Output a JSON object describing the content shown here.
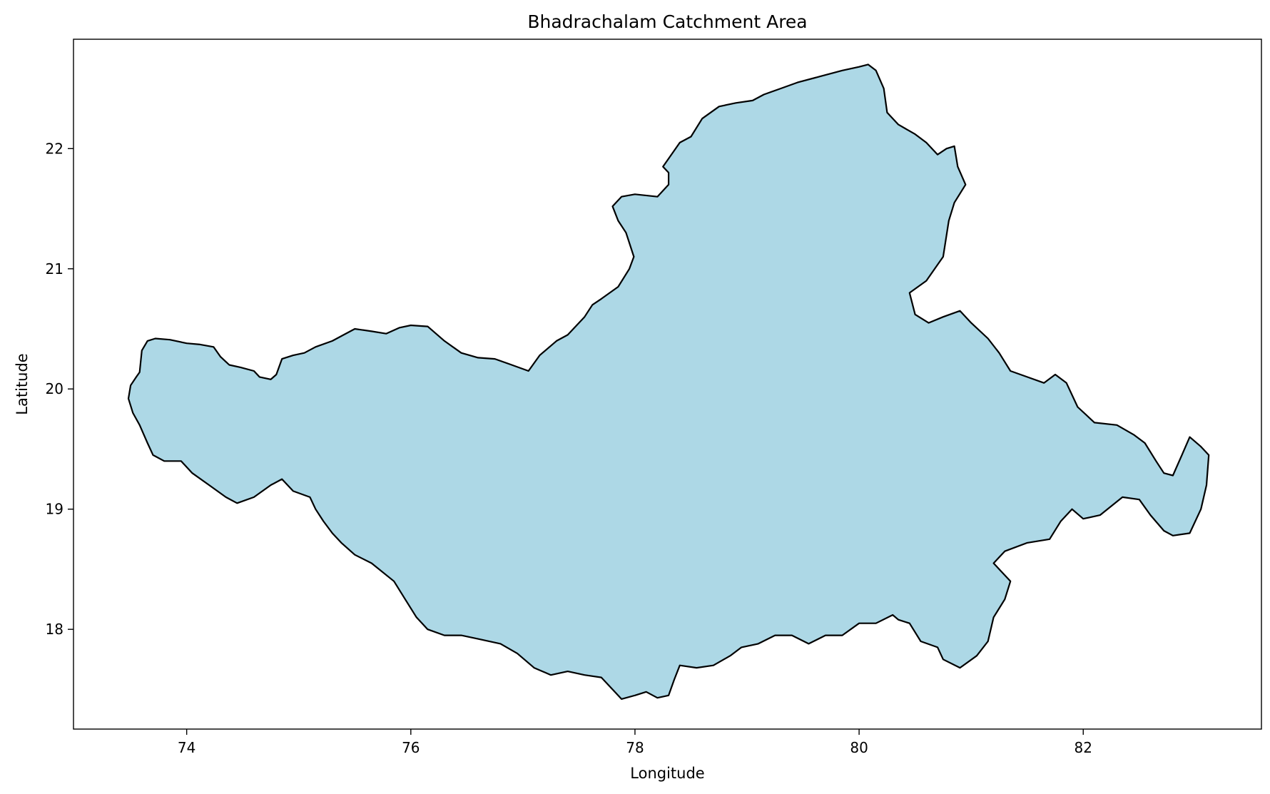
{
  "title": "Bhadrachalam Catchment Area",
  "x_axis": {
    "label": "Longitude",
    "range": [
      72.99,
      83.59
    ],
    "ticks": [
      74,
      76,
      78,
      80,
      82
    ]
  },
  "y_axis": {
    "label": "Latitude",
    "range": [
      17.17,
      22.91
    ],
    "ticks": [
      18,
      19,
      20,
      21,
      22
    ]
  },
  "style": {
    "fill_color": "#add8e6",
    "outline_color": "#000000",
    "frame_color": "#000000",
    "background": "#ffffff"
  },
  "region": {
    "name": "Bhadrachalam Catchment Area",
    "boundary": [
      [
        73.48,
        19.92
      ],
      [
        73.5,
        20.03
      ],
      [
        73.55,
        20.1
      ],
      [
        73.58,
        20.14
      ],
      [
        73.6,
        20.32
      ],
      [
        73.65,
        20.4
      ],
      [
        73.72,
        20.42
      ],
      [
        73.85,
        20.41
      ],
      [
        74.0,
        20.38
      ],
      [
        74.12,
        20.37
      ],
      [
        74.24,
        20.35
      ],
      [
        74.3,
        20.27
      ],
      [
        74.38,
        20.2
      ],
      [
        74.48,
        20.18
      ],
      [
        74.6,
        20.15
      ],
      [
        74.65,
        20.1
      ],
      [
        74.75,
        20.08
      ],
      [
        74.8,
        20.12
      ],
      [
        74.85,
        20.25
      ],
      [
        74.95,
        20.28
      ],
      [
        75.05,
        20.3
      ],
      [
        75.15,
        20.35
      ],
      [
        75.3,
        20.4
      ],
      [
        75.4,
        20.45
      ],
      [
        75.5,
        20.5
      ],
      [
        75.65,
        20.48
      ],
      [
        75.78,
        20.46
      ],
      [
        75.9,
        20.51
      ],
      [
        76.0,
        20.53
      ],
      [
        76.15,
        20.52
      ],
      [
        76.3,
        20.4
      ],
      [
        76.45,
        20.3
      ],
      [
        76.6,
        20.26
      ],
      [
        76.75,
        20.25
      ],
      [
        76.9,
        20.2
      ],
      [
        77.05,
        20.15
      ],
      [
        77.15,
        20.28
      ],
      [
        77.3,
        20.4
      ],
      [
        77.4,
        20.45
      ],
      [
        77.55,
        20.6
      ],
      [
        77.62,
        20.7
      ],
      [
        77.7,
        20.75
      ],
      [
        77.85,
        20.85
      ],
      [
        77.95,
        21.0
      ],
      [
        77.99,
        21.1
      ],
      [
        77.92,
        21.3
      ],
      [
        77.85,
        21.4
      ],
      [
        77.8,
        21.52
      ],
      [
        77.88,
        21.6
      ],
      [
        78.0,
        21.62
      ],
      [
        78.2,
        21.6
      ],
      [
        78.3,
        21.7
      ],
      [
        78.3,
        21.8
      ],
      [
        78.25,
        21.85
      ],
      [
        78.4,
        22.05
      ],
      [
        78.5,
        22.1
      ],
      [
        78.6,
        22.25
      ],
      [
        78.75,
        22.35
      ],
      [
        78.9,
        22.38
      ],
      [
        79.05,
        22.4
      ],
      [
        79.15,
        22.45
      ],
      [
        79.3,
        22.5
      ],
      [
        79.45,
        22.55
      ],
      [
        79.65,
        22.6
      ],
      [
        79.85,
        22.65
      ],
      [
        80.0,
        22.68
      ],
      [
        80.08,
        22.7
      ],
      [
        80.15,
        22.65
      ],
      [
        80.22,
        22.5
      ],
      [
        80.25,
        22.3
      ],
      [
        80.35,
        22.2
      ],
      [
        80.5,
        22.12
      ],
      [
        80.6,
        22.05
      ],
      [
        80.7,
        21.95
      ],
      [
        80.78,
        22.0
      ],
      [
        80.85,
        22.02
      ],
      [
        80.88,
        21.85
      ],
      [
        80.95,
        21.7
      ],
      [
        80.85,
        21.55
      ],
      [
        80.8,
        21.4
      ],
      [
        80.75,
        21.1
      ],
      [
        80.6,
        20.9
      ],
      [
        80.45,
        20.8
      ],
      [
        80.5,
        20.62
      ],
      [
        80.62,
        20.55
      ],
      [
        80.75,
        20.6
      ],
      [
        80.9,
        20.65
      ],
      [
        81.0,
        20.55
      ],
      [
        81.15,
        20.42
      ],
      [
        81.25,
        20.3
      ],
      [
        81.35,
        20.15
      ],
      [
        81.5,
        20.1
      ],
      [
        81.65,
        20.05
      ],
      [
        81.75,
        20.12
      ],
      [
        81.85,
        20.05
      ],
      [
        81.95,
        19.85
      ],
      [
        82.1,
        19.72
      ],
      [
        82.3,
        19.7
      ],
      [
        82.45,
        19.62
      ],
      [
        82.55,
        19.55
      ],
      [
        82.65,
        19.4
      ],
      [
        82.72,
        19.3
      ],
      [
        82.8,
        19.28
      ],
      [
        82.88,
        19.45
      ],
      [
        82.95,
        19.6
      ],
      [
        83.05,
        19.52
      ],
      [
        83.12,
        19.45
      ],
      [
        83.1,
        19.2
      ],
      [
        83.05,
        19.0
      ],
      [
        82.95,
        18.8
      ],
      [
        82.8,
        18.78
      ],
      [
        82.72,
        18.82
      ],
      [
        82.6,
        18.95
      ],
      [
        82.5,
        19.08
      ],
      [
        82.35,
        19.1
      ],
      [
        82.15,
        18.95
      ],
      [
        82.0,
        18.92
      ],
      [
        81.9,
        19.0
      ],
      [
        81.8,
        18.9
      ],
      [
        81.7,
        18.75
      ],
      [
        81.5,
        18.72
      ],
      [
        81.3,
        18.65
      ],
      [
        81.2,
        18.55
      ],
      [
        81.35,
        18.4
      ],
      [
        81.3,
        18.25
      ],
      [
        81.2,
        18.1
      ],
      [
        81.15,
        17.9
      ],
      [
        81.05,
        17.78
      ],
      [
        80.9,
        17.68
      ],
      [
        80.75,
        17.75
      ],
      [
        80.7,
        17.85
      ],
      [
        80.55,
        17.9
      ],
      [
        80.45,
        18.05
      ],
      [
        80.35,
        18.08
      ],
      [
        80.3,
        18.12
      ],
      [
        80.15,
        18.05
      ],
      [
        80.0,
        18.05
      ],
      [
        79.85,
        17.95
      ],
      [
        79.7,
        17.95
      ],
      [
        79.55,
        17.88
      ],
      [
        79.4,
        17.95
      ],
      [
        79.25,
        17.95
      ],
      [
        79.1,
        17.88
      ],
      [
        78.95,
        17.85
      ],
      [
        78.85,
        17.78
      ],
      [
        78.7,
        17.7
      ],
      [
        78.55,
        17.68
      ],
      [
        78.4,
        17.7
      ],
      [
        78.35,
        17.58
      ],
      [
        78.3,
        17.45
      ],
      [
        78.2,
        17.43
      ],
      [
        78.1,
        17.48
      ],
      [
        78.0,
        17.45
      ],
      [
        77.88,
        17.42
      ],
      [
        77.8,
        17.5
      ],
      [
        77.7,
        17.6
      ],
      [
        77.55,
        17.62
      ],
      [
        77.4,
        17.65
      ],
      [
        77.25,
        17.62
      ],
      [
        77.1,
        17.68
      ],
      [
        76.95,
        17.8
      ],
      [
        76.8,
        17.88
      ],
      [
        76.6,
        17.92
      ],
      [
        76.45,
        17.95
      ],
      [
        76.3,
        17.95
      ],
      [
        76.15,
        18.0
      ],
      [
        76.05,
        18.1
      ],
      [
        75.95,
        18.25
      ],
      [
        75.85,
        18.4
      ],
      [
        75.65,
        18.55
      ],
      [
        75.5,
        18.62
      ],
      [
        75.38,
        18.72
      ],
      [
        75.3,
        18.8
      ],
      [
        75.22,
        18.9
      ],
      [
        75.15,
        19.0
      ],
      [
        75.1,
        19.1
      ],
      [
        74.95,
        19.15
      ],
      [
        74.85,
        19.25
      ],
      [
        74.75,
        19.2
      ],
      [
        74.6,
        19.1
      ],
      [
        74.45,
        19.05
      ],
      [
        74.35,
        19.1
      ],
      [
        74.2,
        19.2
      ],
      [
        74.05,
        19.3
      ],
      [
        73.95,
        19.4
      ],
      [
        73.8,
        19.4
      ],
      [
        73.7,
        19.45
      ],
      [
        73.65,
        19.55
      ],
      [
        73.58,
        19.7
      ],
      [
        73.52,
        19.8
      ]
    ]
  }
}
